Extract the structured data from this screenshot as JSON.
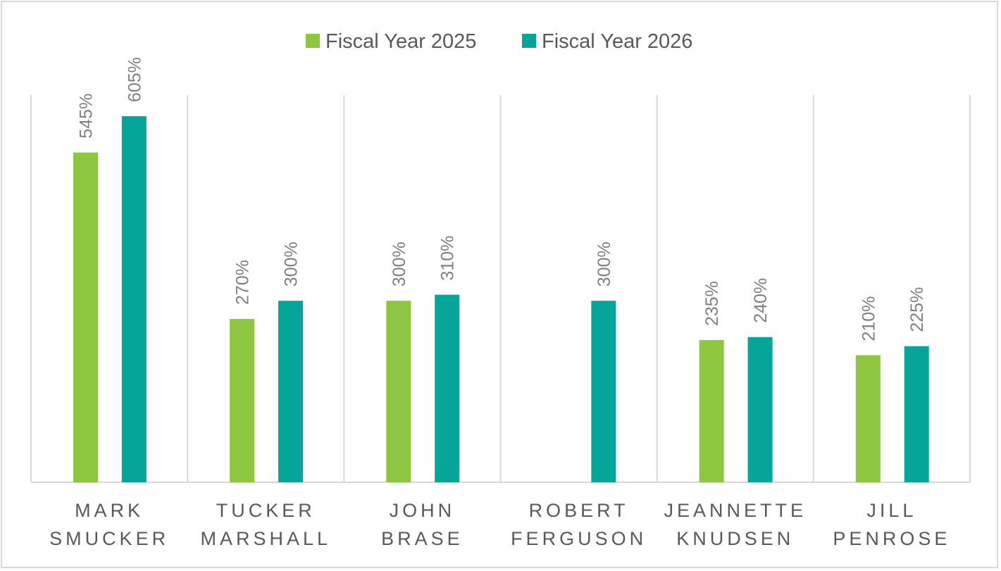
{
  "chart_data": {
    "type": "bar",
    "categories": [
      [
        "MARK",
        "SMUCKER"
      ],
      [
        "TUCKER",
        "MARSHALL"
      ],
      [
        "JOHN",
        "BRASE"
      ],
      [
        "ROBERT",
        "FERGUSON"
      ],
      [
        "JEANNETTE",
        "KNUDSEN"
      ],
      [
        "JILL",
        "PENROSE"
      ]
    ],
    "series": [
      {
        "name": "Fiscal Year 2025",
        "color": "#8dc63f",
        "values": [
          545,
          270,
          300,
          null,
          235,
          210
        ],
        "labels": [
          "545%",
          "270%",
          "300%",
          "",
          "235%",
          "210%"
        ]
      },
      {
        "name": "Fiscal Year 2026",
        "color": "#06a59a",
        "values": [
          605,
          300,
          310,
          300,
          240,
          225
        ],
        "labels": [
          "605%",
          "300%",
          "310%",
          "300%",
          "240%",
          "225%"
        ]
      }
    ],
    "ylim": [
      0,
      640
    ],
    "grid": "vertical category separators",
    "legend": "top-center",
    "data_labels": "rotated above bars"
  }
}
